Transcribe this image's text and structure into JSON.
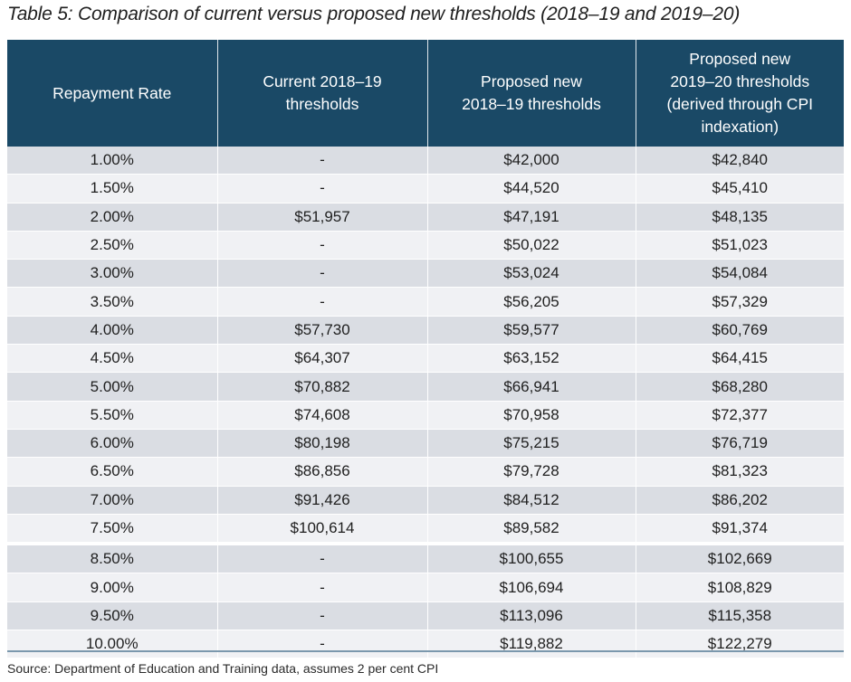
{
  "title": "Table 5: Comparison of current versus proposed new thresholds (2018–19 and 2019–20)",
  "table": {
    "headers": [
      [
        "Repayment Rate"
      ],
      [
        "Current 2018–19",
        "thresholds"
      ],
      [
        "Proposed new",
        "2018–19 thresholds"
      ],
      [
        "Proposed new",
        "2019–20 thresholds",
        "(derived through CPI",
        "indexation)"
      ]
    ],
    "rows": [
      [
        "1.00%",
        "-",
        "$42,000",
        "$42,840"
      ],
      [
        "1.50%",
        "-",
        "$44,520",
        "$45,410"
      ],
      [
        "2.00%",
        "$51,957",
        "$47,191",
        "$48,135"
      ],
      [
        "2.50%",
        "-",
        "$50,022",
        "$51,023"
      ],
      [
        "3.00%",
        "-",
        "$53,024",
        "$54,084"
      ],
      [
        "3.50%",
        "-",
        "$56,205",
        "$57,329"
      ],
      [
        "4.00%",
        "$57,730",
        "$59,577",
        "$60,769"
      ],
      [
        "4.50%",
        "$64,307",
        "$63,152",
        "$64,415"
      ],
      [
        "5.00%",
        "$70,882",
        "$66,941",
        "$68,280"
      ],
      [
        "5.50%",
        "$74,608",
        "$70,958",
        "$72,377"
      ],
      [
        "6.00%",
        "$80,198",
        "$75,215",
        "$76,719"
      ],
      [
        "6.50%",
        "$86,856",
        "$79,728",
        "$81,323"
      ],
      [
        "7.00%",
        "$91,426",
        "$84,512",
        "$86,202"
      ],
      [
        "7.50%",
        "$100,614",
        "$89,582",
        "$91,374"
      ],
      [
        "8.50%",
        "-",
        "$100,655",
        "$102,669"
      ],
      [
        "9.00%",
        "-",
        "$106,694",
        "$108,829"
      ],
      [
        "9.50%",
        "-",
        "$113,096",
        "$115,358"
      ],
      [
        "10.00%",
        "-",
        "$119,882",
        "$122,279"
      ]
    ]
  },
  "source": "Source: Department of Education and Training data, assumes 2 per cent CPI",
  "colors": {
    "header_bg": "#1a4966",
    "row_dark": "#dadde3",
    "row_light": "#f0f1f4"
  }
}
